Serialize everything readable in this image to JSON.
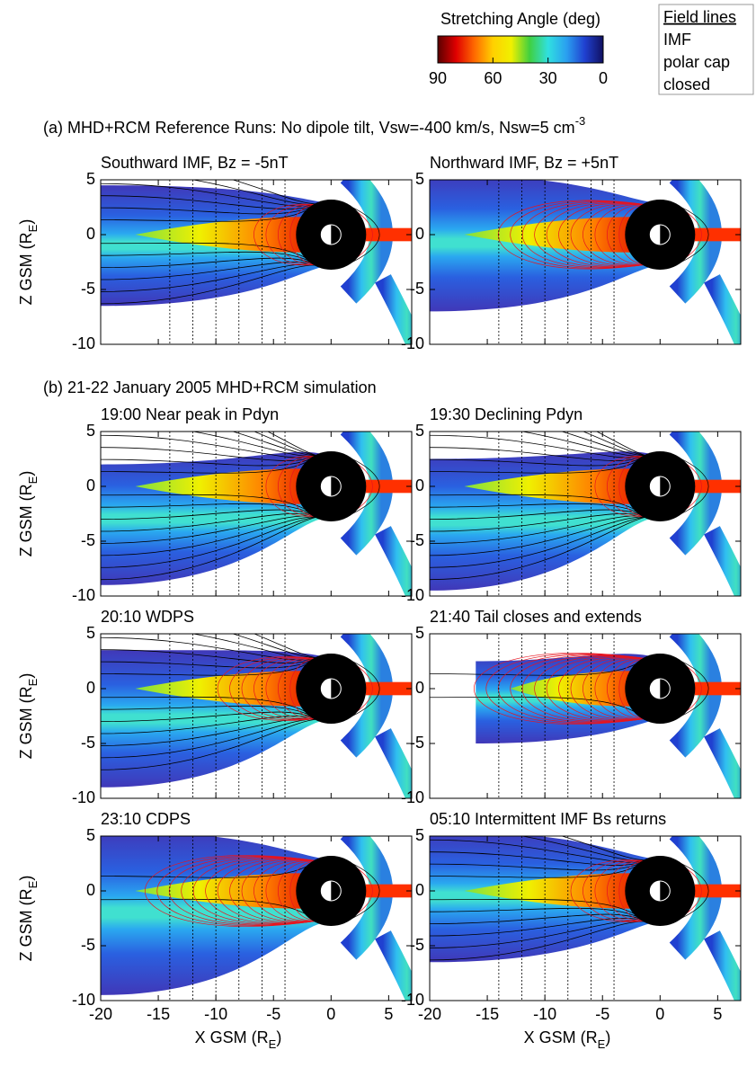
{
  "headings": [
    [
      "(a) MHD+RCM Reference Runs:  No dipole tilt,  Vsw=-400 km/s, Nsw=5 cm",
      "-3"
    ],
    [
      "(b) 21-22 January 2005 MHD+RCM simulation"
    ]
  ],
  "legend": {
    "title": "Field lines",
    "entries": [
      {
        "name": "IMF",
        "color": "#1a55e6"
      },
      {
        "name": "polar cap",
        "color": "#000000"
      },
      {
        "name": "closed",
        "color": "#e8141e"
      }
    ]
  },
  "chart_data": [
    {
      "type": "colorbar",
      "title": "Stretching Angle (deg)",
      "xlim": [
        90,
        0
      ],
      "xticks": [
        90,
        60,
        30,
        0
      ],
      "colors": [
        "#5a0000",
        "#e00000",
        "#ff6a00",
        "#ffd000",
        "#f0f000",
        "#40d040",
        "#30e0e0",
        "#2aa0f0",
        "#2040d0",
        "#101060"
      ]
    },
    {
      "type": "field-map",
      "title": "Southward IMF, Bz = -5nT",
      "xlim": [
        -20,
        7
      ],
      "ylim": [
        -10,
        5
      ],
      "xticks": [
        -20,
        -15,
        -10,
        -5,
        0,
        5
      ],
      "yticks": [
        5,
        0,
        -5,
        -10
      ],
      "ylabel": [
        "Z GSM (R",
        "E",
        ")"
      ],
      "xtick_labels": false
    },
    {
      "type": "field-map",
      "title": "Northward IMF, Bz = +5nT",
      "xlim": [
        -20,
        7
      ],
      "ylim": [
        -10,
        5
      ],
      "xticks": [
        -20,
        -15,
        -10,
        -5,
        0,
        5
      ],
      "yticks": [
        5,
        0,
        -5,
        -10
      ],
      "xtick_labels": false
    },
    {
      "type": "field-map",
      "title": "19:00  Near peak in Pdyn",
      "xlim": [
        -20,
        7
      ],
      "ylim": [
        -10,
        5
      ],
      "xticks": [
        -20,
        -15,
        -10,
        -5,
        0,
        5
      ],
      "yticks": [
        5,
        0,
        -5,
        -10
      ],
      "ylabel": [
        "Z GSM (R",
        "E",
        ")"
      ],
      "xtick_labels": false
    },
    {
      "type": "field-map",
      "title": "19:30  Declining Pdyn",
      "xlim": [
        -20,
        7
      ],
      "ylim": [
        -10,
        5
      ],
      "xticks": [
        -20,
        -15,
        -10,
        -5,
        0,
        5
      ],
      "yticks": [
        5,
        0,
        -5,
        -10
      ],
      "xtick_labels": false
    },
    {
      "type": "field-map",
      "title": "20:10  WDPS",
      "xlim": [
        -20,
        7
      ],
      "ylim": [
        -10,
        5
      ],
      "xticks": [
        -20,
        -15,
        -10,
        -5,
        0,
        5
      ],
      "yticks": [
        5,
        0,
        -5,
        -10
      ],
      "ylabel": [
        "Z GSM (R",
        "E",
        ")"
      ],
      "xtick_labels": false
    },
    {
      "type": "field-map",
      "title": "21:40  Tail closes and extends",
      "xlim": [
        -20,
        7
      ],
      "ylim": [
        -10,
        5
      ],
      "xticks": [
        -20,
        -15,
        -10,
        -5,
        0,
        5
      ],
      "yticks": [
        5,
        0,
        -5,
        -10
      ],
      "xtick_labels": false
    },
    {
      "type": "field-map",
      "title": "23:10  CDPS",
      "xlim": [
        -20,
        7
      ],
      "ylim": [
        -10,
        5
      ],
      "xticks": [
        -20,
        -15,
        -10,
        -5,
        0,
        5
      ],
      "yticks": [
        5,
        0,
        -5,
        -10
      ],
      "ylabel": [
        "Z GSM (R",
        "E",
        ")"
      ],
      "xlabel": [
        "X GSM (R",
        "E",
        ")"
      ],
      "xtick_labels": true
    },
    {
      "type": "field-map",
      "title": "05:10  Intermittent IMF Bs returns",
      "xlim": [
        -20,
        7
      ],
      "ylim": [
        -10,
        5
      ],
      "xticks": [
        -20,
        -15,
        -10,
        -5,
        0,
        5
      ],
      "yticks": [
        5,
        0,
        -5,
        -10
      ],
      "xlabel": [
        "X GSM (R",
        "E",
        ")"
      ],
      "xtick_labels": true
    }
  ]
}
